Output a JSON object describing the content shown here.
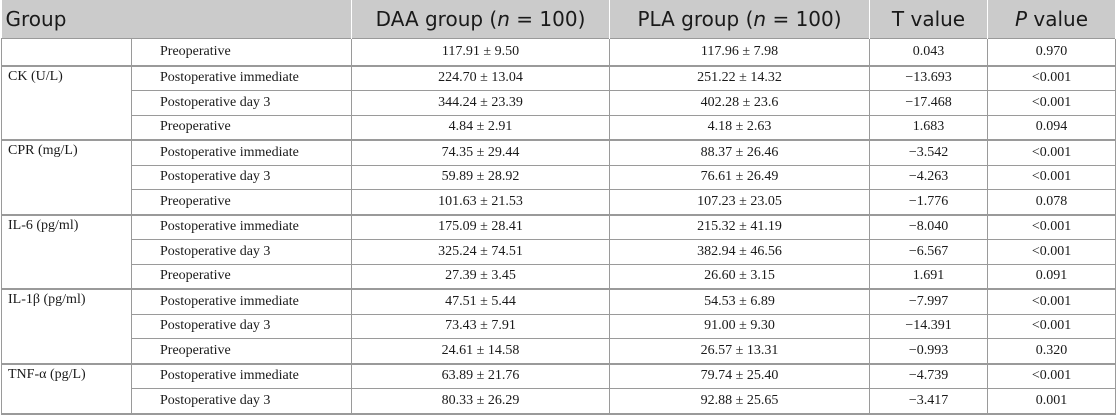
{
  "header": {
    "group": "Group",
    "daa": "DAA group (",
    "daa_n": "n",
    "daa_tail": " = 100)",
    "pla": "PLA group (",
    "pla_n": "n",
    "pla_tail": " = 100)",
    "t": "T value",
    "p": "P",
    "p_tail": " value"
  },
  "groups": [
    {
      "label": "",
      "rows": [
        {
          "time": "Preoperative",
          "daa": "117.91 ± 9.50",
          "pla": "117.96 ± 7.98",
          "t": "0.043",
          "p": "0.970"
        }
      ]
    },
    {
      "label": "CK (U/L)",
      "rows": [
        {
          "time": "Postoperative immediate",
          "daa": "224.70 ± 13.04",
          "pla": "251.22 ± 14.32",
          "t": "−13.693",
          "p": "<0.001"
        },
        {
          "time": "Postoperative day 3",
          "daa": "344.24 ± 23.39",
          "pla": "402.28 ± 23.6",
          "t": "−17.468",
          "p": "<0.001"
        },
        {
          "time": "Preoperative",
          "daa": "4.84 ± 2.91",
          "pla": "4.18 ± 2.63",
          "t": "1.683",
          "p": "0.094"
        }
      ]
    },
    {
      "label": "CPR (mg/L)",
      "rows": [
        {
          "time": "Postoperative immediate",
          "daa": "74.35 ± 29.44",
          "pla": "88.37 ± 26.46",
          "t": "−3.542",
          "p": "<0.001"
        },
        {
          "time": "Postoperative day 3",
          "daa": "59.89 ± 28.92",
          "pla": "76.61 ± 26.49",
          "t": "−4.263",
          "p": "<0.001"
        },
        {
          "time": "Preoperative",
          "daa": "101.63 ± 21.53",
          "pla": "107.23 ± 23.05",
          "t": "−1.776",
          "p": "0.078"
        }
      ]
    },
    {
      "label": "IL-6 (pg/ml)",
      "rows": [
        {
          "time": "Postoperative immediate",
          "daa": "175.09 ± 28.41",
          "pla": "215.32 ± 41.19",
          "t": "−8.040",
          "p": "<0.001"
        },
        {
          "time": "Postoperative day 3",
          "daa": "325.24 ± 74.51",
          "pla": "382.94 ± 46.56",
          "t": "−6.567",
          "p": "<0.001"
        },
        {
          "time": "Preoperative",
          "daa": "27.39 ± 3.45",
          "pla": "26.60 ± 3.15",
          "t": "1.691",
          "p": "0.091"
        }
      ]
    },
    {
      "label": "IL-1β (pg/ml)",
      "rows": [
        {
          "time": "Postoperative immediate",
          "daa": "47.51 ± 5.44",
          "pla": "54.53 ± 6.89",
          "t": "−7.997",
          "p": "<0.001"
        },
        {
          "time": "Postoperative day 3",
          "daa": "73.43 ± 7.91",
          "pla": "91.00 ± 9.30",
          "t": "−14.391",
          "p": "<0.001"
        },
        {
          "time": "Preoperative",
          "daa": "24.61 ± 14.58",
          "pla": "26.57 ± 13.31",
          "t": "−0.993",
          "p": "0.320"
        }
      ]
    },
    {
      "label": "TNF-α (pg/L)",
      "rows": [
        {
          "time": "Postoperative immediate",
          "daa": "63.89 ± 21.76",
          "pla": "79.74 ± 25.40",
          "t": "−4.739",
          "p": "<0.001"
        },
        {
          "time": "Postoperative day 3",
          "daa": "80.33 ± 26.29",
          "pla": "92.88 ± 25.65",
          "t": "−3.417",
          "p": "0.001"
        }
      ]
    }
  ]
}
